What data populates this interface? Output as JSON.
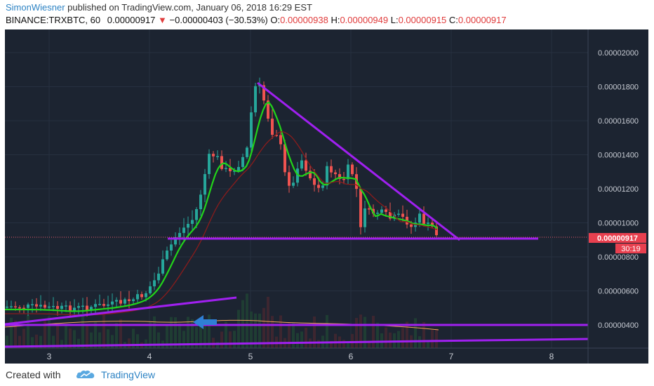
{
  "header": {
    "author": "SimonWiesner",
    "published_text": " published on TradingView.com, January 06, 2018 16:29 EST",
    "symbol": "BINANCE:TRXBTC, 60",
    "last": "0.00000917",
    "down_arrow": "▼",
    "change": "−0.00000403 (−30.53%)",
    "o_label": "O:",
    "o_value": "0.00000938",
    "h_label": "H:",
    "h_value": "0.00000949",
    "l_label": "L:",
    "l_value": "0.00000915",
    "c_label": "C:",
    "c_value": "0.00000917"
  },
  "chart": {
    "price_axis": [
      "0.00002000",
      "0.00001800",
      "0.00001600",
      "0.00001400",
      "0.00001200",
      "0.00001000",
      "0.00000800",
      "0.00000600",
      "0.00000400"
    ],
    "time_axis": [
      "3",
      "4",
      "5",
      "6",
      "7",
      "8"
    ],
    "current_price_tag": "0.00000917",
    "countdown_tag": "30:19",
    "colors": {
      "background": "#1c2431",
      "up": "#26a69a",
      "down": "#ef5350",
      "ema": "#22d41a",
      "ma": "#8a1c1c",
      "trendline": "#a020f0",
      "volume_ma": "#f4a460"
    }
  },
  "footer": {
    "created_with": "Created with",
    "brand": "TradingView"
  }
}
